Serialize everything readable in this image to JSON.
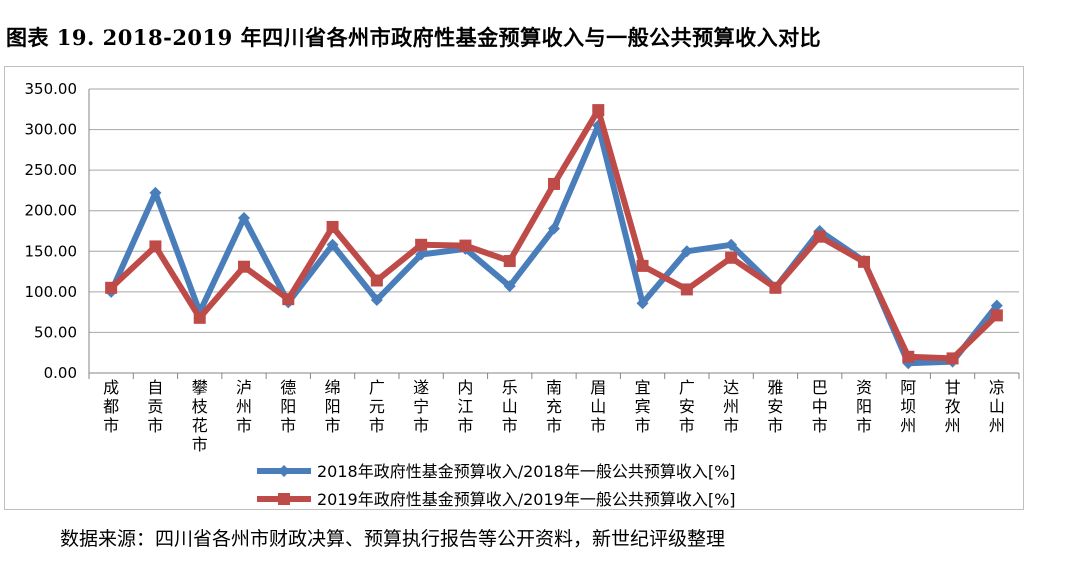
{
  "title": "图表 19. 2018-2019 年四川省各州市政府性基金预算收入与一般公共预算收入对比",
  "source": "数据来源：四川省各州市财政决算、预算执行报告等公开资料，新世纪评级整理",
  "colors": {
    "series_2018": "#4a7ebb",
    "series_2019": "#be4b48",
    "grid": "#a6a6a6",
    "axis": "#868686"
  },
  "chart_data": {
    "type": "line",
    "categories": [
      "成都市",
      "自贡市",
      "攀枝花市",
      "泸州市",
      "德阳市",
      "绵阳市",
      "广元市",
      "遂宁市",
      "内江市",
      "乐山市",
      "南充市",
      "眉山市",
      "宜宾市",
      "广安市",
      "达州市",
      "雅安市",
      "巴中市",
      "资阳市",
      "阿坝州",
      "甘孜州",
      "凉山州"
    ],
    "yticks": [
      "350.00",
      "300.00",
      "250.00",
      "200.00",
      "150.00",
      "100.00",
      "50.00",
      "0.00"
    ],
    "ylim": [
      0,
      350
    ],
    "grid": true,
    "legend_position": "bottom",
    "series": [
      {
        "name": "2018年政府性基金预算收入/2018年一般公共预算收入[%]",
        "marker": "diamond",
        "values": [
          100,
          222,
          75,
          191,
          87,
          158,
          90,
          146,
          153,
          107,
          178,
          305,
          86,
          150,
          158,
          105,
          175,
          138,
          12,
          14,
          83
        ]
      },
      {
        "name": "2019年政府性基金预算收入/2019年一般公共预算收入[%]",
        "marker": "square",
        "values": [
          105,
          156,
          68,
          131,
          91,
          180,
          114,
          158,
          157,
          138,
          233,
          324,
          132,
          103,
          142,
          105,
          168,
          137,
          20,
          18,
          71
        ]
      }
    ]
  }
}
